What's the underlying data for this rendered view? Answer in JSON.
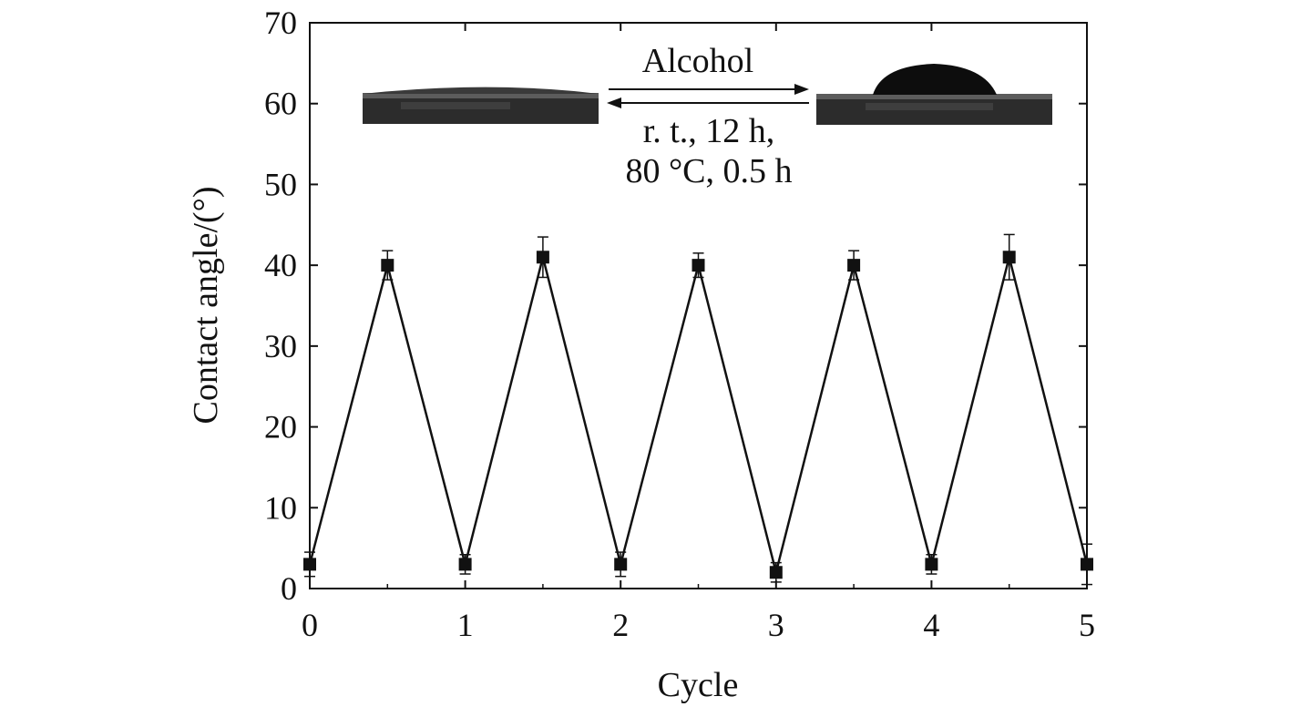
{
  "chart_data": {
    "type": "line",
    "xlabel": "Cycle",
    "ylabel": "Contact angle/(°)",
    "xlim": [
      0,
      5
    ],
    "ylim": [
      0,
      70
    ],
    "xticks": [
      "0",
      "1",
      "2",
      "3",
      "4",
      "5"
    ],
    "yticks": [
      "0",
      "10",
      "20",
      "30",
      "40",
      "50",
      "60",
      "70"
    ],
    "grid": false,
    "marker": "filled-square",
    "series": [
      {
        "x": [
          0,
          0.5,
          1,
          1.5,
          2,
          2.5,
          3,
          3.5,
          4,
          4.5,
          5
        ],
        "y": [
          3,
          40,
          3,
          41,
          3,
          40,
          2,
          40,
          3,
          41,
          3
        ],
        "error": [
          1.5,
          1.8,
          1.2,
          2.5,
          1.5,
          1.5,
          1.2,
          1.8,
          1.2,
          2.8,
          2.5
        ]
      }
    ],
    "annotations": {
      "forward_label": "Alcohol",
      "reverse_label_line1": "r. t., 12 h,",
      "reverse_label_line2": "80 °C, 0.5 h"
    }
  }
}
